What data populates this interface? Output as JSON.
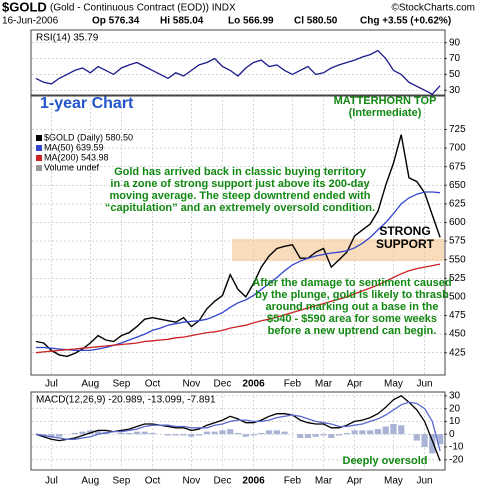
{
  "header": {
    "symbol": "$GOLD",
    "description": "(Gold - Continuous Contract (EOD)) INDX",
    "source": "©StockCharts.com",
    "date": "16-Jun-2006",
    "open": "Op 576.34",
    "high": "Hi 585.04",
    "low": "Lo 566.99",
    "close": "Cl 580.50",
    "change": "Chg +3.55 (+0.62%)"
  },
  "chart_data": [
    {
      "type": "line",
      "title": "RSI(14) 35.79",
      "ylim": [
        24,
        106
      ],
      "yticks": [
        30,
        50,
        70,
        90
      ],
      "grid": true,
      "series": [
        {
          "name": "RSI(14)",
          "color": "#1a1a8c",
          "values": [
            45,
            40,
            38,
            45,
            50,
            55,
            58,
            52,
            60,
            55,
            50,
            58,
            62,
            65,
            60,
            55,
            50,
            45,
            52,
            48,
            55,
            62,
            65,
            70,
            60,
            55,
            48,
            58,
            65,
            68,
            60,
            62,
            55,
            50,
            55,
            60,
            50,
            52,
            58,
            62,
            65,
            68,
            72,
            75,
            80,
            70,
            55,
            50,
            40,
            35,
            30,
            25,
            35.79
          ]
        }
      ]
    },
    {
      "type": "line",
      "ylim": [
        395,
        770
      ],
      "yticks": [
        425,
        450,
        475,
        500,
        525,
        550,
        575,
        600,
        625,
        650,
        675,
        700,
        725
      ],
      "grid": true,
      "legend_note": "Volume undef",
      "support_band": [
        548,
        578
      ],
      "categories": [
        null,
        null,
        "Jul",
        null,
        null,
        null,
        null,
        "Aug",
        null,
        null,
        null,
        "Sep",
        null,
        null,
        null,
        "Oct",
        null,
        null,
        null,
        null,
        "Nov",
        null,
        null,
        null,
        "Dec",
        null,
        null,
        null,
        "2006",
        null,
        null,
        null,
        null,
        "Feb",
        null,
        null,
        null,
        "Mar",
        null,
        null,
        null,
        "Apr",
        null,
        null,
        null,
        null,
        "May",
        null,
        null,
        null,
        "Jun",
        null,
        null
      ],
      "series": [
        {
          "name": "$GOLD (Daily) 580.50",
          "color": "#000000",
          "values": [
            440,
            438,
            428,
            422,
            420,
            424,
            430,
            438,
            448,
            442,
            440,
            448,
            452,
            460,
            470,
            472,
            470,
            468,
            466,
            472,
            460,
            468,
            484,
            494,
            502,
            530,
            510,
            500,
            518,
            540,
            555,
            565,
            568,
            570,
            552,
            552,
            560,
            565,
            540,
            550,
            560,
            582,
            590,
            598,
            615,
            650,
            680,
            718,
            660,
            655,
            640,
            610,
            580
          ]
        },
        {
          "name": "MA(50) 639.59",
          "color": "#3344cc",
          "values": [
            432,
            432,
            431,
            430,
            429,
            428,
            428,
            428,
            430,
            432,
            435,
            438,
            442,
            446,
            450,
            455,
            458,
            462,
            464,
            466,
            467,
            468,
            470,
            474,
            479,
            486,
            492,
            496,
            502,
            510,
            518,
            526,
            535,
            543,
            548,
            552,
            555,
            557,
            559,
            560,
            562,
            566,
            572,
            580,
            590,
            600,
            612,
            625,
            633,
            638,
            641,
            641,
            640
          ]
        },
        {
          "name": "MA(200) 543.98",
          "color": "#cc2222",
          "values": [
            425,
            426,
            427,
            428,
            429,
            430,
            431,
            432,
            433,
            434,
            435,
            436,
            437,
            438,
            440,
            441,
            442,
            443,
            445,
            446,
            448,
            450,
            452,
            453,
            455,
            458,
            460,
            462,
            465,
            468,
            470,
            473,
            476,
            479,
            482,
            485,
            488,
            491,
            494,
            497,
            500,
            504,
            508,
            512,
            516,
            521,
            526,
            531,
            535,
            538,
            540,
            542,
            544
          ]
        }
      ],
      "annotations": [
        [
          "1-year Chart"
        ],
        [
          "MATTERHORN TOP",
          "(Intermediate)"
        ],
        [
          "Gold has arrived back in classic buying territory",
          "in a zone of strong support just above its 200-day",
          "moving average. The steep downtrend ended with",
          "“capitulation” and an extremely oversold condition."
        ],
        [
          "STRONG",
          "SUPPORT"
        ],
        [
          "After the damage to sentiment caused",
          "by the plunge, gold is likely to thrash",
          "around marking out a base in the",
          "$540 - $590 area for some weeks",
          "before a new uptrend can begin."
        ]
      ]
    },
    {
      "type": "line",
      "title": "MACD(12,26,9) -20.989, -13.099, -7.891",
      "ylim": [
        -28,
        33
      ],
      "yticks": [
        -20,
        -10,
        0,
        10,
        20,
        30
      ],
      "grid": true,
      "categories": [
        null,
        null,
        "Jul",
        null,
        null,
        null,
        null,
        "Aug",
        null,
        null,
        null,
        "Sep",
        null,
        null,
        null,
        "Oct",
        null,
        null,
        null,
        null,
        "Nov",
        null,
        null,
        null,
        "Dec",
        null,
        null,
        null,
        "2006",
        null,
        null,
        null,
        null,
        "Feb",
        null,
        null,
        null,
        "Mar",
        null,
        null,
        null,
        "Apr",
        null,
        null,
        null,
        null,
        "May",
        null,
        null,
        null,
        "Jun",
        null,
        null
      ],
      "histogram": {
        "color": "#a9b3d6",
        "values": [
          0,
          -1,
          -2,
          -2,
          0,
          1,
          2,
          3,
          3,
          2,
          0,
          1,
          1,
          2,
          2,
          1,
          0,
          -1,
          -1,
          -1,
          -2,
          -1,
          2,
          2,
          3,
          4,
          1,
          -2,
          -1,
          1,
          3,
          3,
          2,
          0,
          -3,
          -3,
          -2,
          -1,
          -3,
          -1,
          1,
          3,
          3,
          3,
          4,
          6,
          8,
          7,
          0,
          -5,
          -10,
          -15,
          -7.891
        ]
      },
      "series": [
        {
          "name": "MACD",
          "color": "#000000",
          "values": [
            0,
            -2,
            -4,
            -5,
            -4,
            -3,
            -1,
            1,
            3,
            3,
            2,
            3,
            4,
            6,
            8,
            8,
            7,
            6,
            5,
            5,
            3,
            4,
            7,
            9,
            11,
            14,
            12,
            9,
            9,
            11,
            14,
            16,
            16,
            15,
            11,
            9,
            8,
            8,
            5,
            5,
            7,
            10,
            11,
            13,
            16,
            21,
            27,
            30,
            25,
            19,
            10,
            -5,
            -20.989
          ]
        },
        {
          "name": "Signal",
          "color": "#5a6acd",
          "values": [
            0,
            -1,
            -2,
            -3,
            -4,
            -4,
            -3,
            -2,
            0,
            1,
            2,
            2,
            3,
            4,
            6,
            7,
            7,
            7,
            6,
            6,
            5,
            5,
            5,
            7,
            8,
            10,
            11,
            11,
            10,
            10,
            11,
            13,
            14,
            15,
            14,
            12,
            10,
            9,
            8,
            6,
            6,
            7,
            8,
            10,
            12,
            15,
            19,
            23,
            25,
            24,
            20,
            10,
            -13.099
          ]
        }
      ],
      "annotations": [
        [
          "Deeply oversold"
        ]
      ]
    }
  ]
}
